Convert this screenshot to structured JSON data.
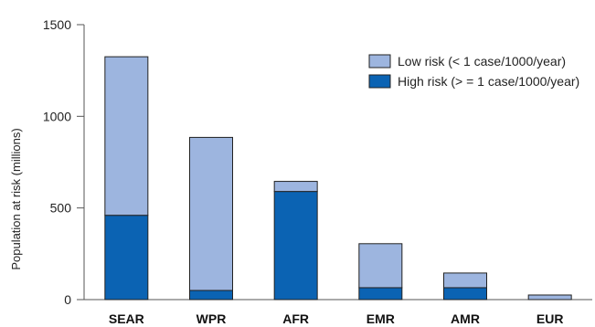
{
  "chart_data": {
    "type": "bar",
    "stacked": true,
    "categories": [
      "SEAR",
      "WPR",
      "AFR",
      "EMR",
      "AMR",
      "EUR"
    ],
    "series": [
      {
        "name": "High risk (>=1 case/1000/year)",
        "label": "High risk (> = 1 case/1000/year)",
        "color": "#0b63b3",
        "values": [
          460,
          50,
          590,
          65,
          65,
          0
        ]
      },
      {
        "name": "Low risk (<1 case/1000/year)",
        "label": "Low risk (< 1 case/1000/year)",
        "color": "#9db5df",
        "values": [
          865,
          835,
          55,
          240,
          80,
          25
        ]
      }
    ],
    "ylabel": "Population at risk (millions)",
    "ylim": [
      0,
      1500
    ],
    "yticks": [
      0,
      500,
      1000,
      1500
    ],
    "grid": false,
    "legend_position": "top-right",
    "colors": {
      "bar_outline": "#222222",
      "axis": "#555555"
    }
  }
}
